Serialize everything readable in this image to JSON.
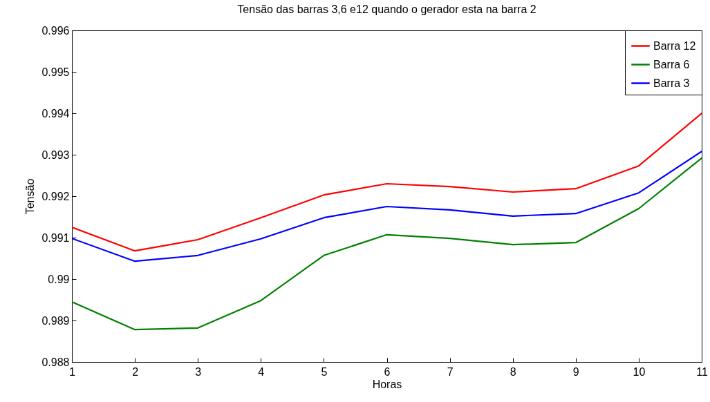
{
  "chart_data": {
    "type": "line",
    "title": "Tensão das barras 3,6 e12 quando o gerador esta na barra 2",
    "xlabel": "Horas",
    "ylabel": "Tensão",
    "x": [
      1,
      2,
      3,
      4,
      5,
      6,
      7,
      8,
      9,
      10,
      11
    ],
    "xlim": [
      1,
      11
    ],
    "xticks": [
      1,
      2,
      3,
      4,
      5,
      6,
      7,
      8,
      9,
      10,
      11
    ],
    "ylim": [
      0.988,
      0.996
    ],
    "yticks": [
      0.988,
      0.989,
      {
        "value": 0.99,
        "label": "0.99"
      },
      0.991,
      0.992,
      0.993,
      0.994,
      0.995,
      0.996
    ],
    "grid": false,
    "legend": "top right",
    "marker": "none",
    "line_style": "solid",
    "series": [
      {
        "name": "Barra 12",
        "color": "#ff0000",
        "values": [
          0.99125,
          0.99068,
          0.99095,
          0.99148,
          0.99203,
          0.9923,
          0.99223,
          0.9921,
          0.99218,
          0.99273,
          0.994
        ]
      },
      {
        "name": "Barra 6",
        "color": "#008000",
        "values": [
          0.98945,
          0.98878,
          0.98882,
          0.98948,
          0.99057,
          0.99107,
          0.99098,
          0.99083,
          0.99088,
          0.9917,
          0.99292
        ]
      },
      {
        "name": "Barra 3",
        "color": "#0000ff",
        "values": [
          0.99098,
          0.99043,
          0.99057,
          0.99097,
          0.99148,
          0.99175,
          0.99167,
          0.99152,
          0.99158,
          0.99208,
          0.99308
        ]
      }
    ]
  }
}
